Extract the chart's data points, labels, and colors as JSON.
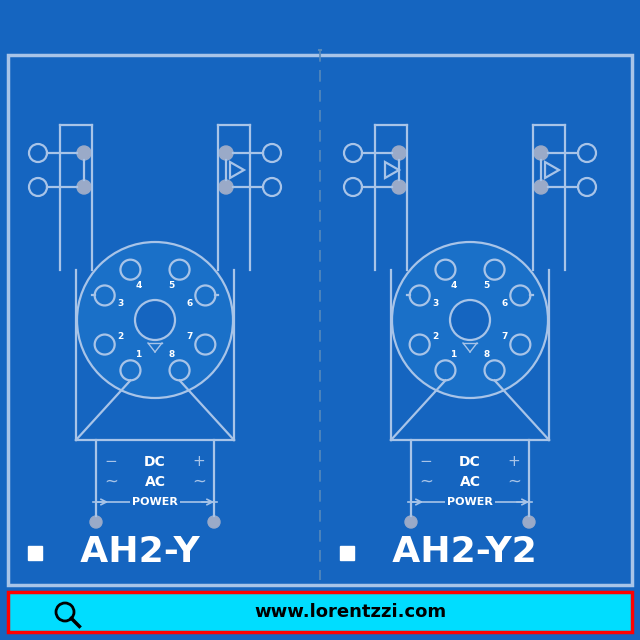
{
  "bg_color": "#1565C0",
  "line_color": "#A8C4E8",
  "dot_color": "#9AAAC8",
  "text_color": "#FFFFFF",
  "border_color": "#A8C4E8",
  "bottom_bar_color": "#00DDFF",
  "bottom_bar_text": "www.lorentzzi.com",
  "bottom_bar_border": "#FF0000",
  "main_title_left": "AH2-Y",
  "main_title_right": "AH2-Y2",
  "label_dc": "DC",
  "label_ac": "AC",
  "label_power": "POWER",
  "circle_fill": "#1A70C8",
  "divider_color": "#5588BB"
}
